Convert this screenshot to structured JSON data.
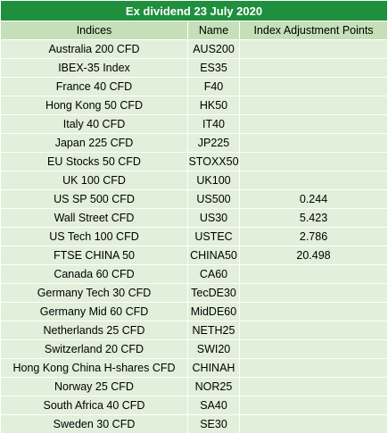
{
  "title": "Ex dividend 23 July 2020",
  "headers": [
    "Indices",
    "Name",
    "Index Adjustment Points"
  ],
  "rows": [
    [
      "Australia 200 CFD",
      "AUS200",
      ""
    ],
    [
      "IBEX-35 Index",
      "ES35",
      ""
    ],
    [
      "France 40 CFD",
      "F40",
      ""
    ],
    [
      "Hong Kong 50 CFD",
      "HK50",
      ""
    ],
    [
      "Italy 40 CFD",
      "IT40",
      ""
    ],
    [
      "Japan 225 CFD",
      "JP225",
      ""
    ],
    [
      "EU Stocks 50 CFD",
      "STOXX50",
      ""
    ],
    [
      "UK 100 CFD",
      "UK100",
      ""
    ],
    [
      "US SP 500 CFD",
      "US500",
      "0.244"
    ],
    [
      "Wall Street CFD",
      "US30",
      "5.423"
    ],
    [
      "US Tech 100 CFD",
      "USTEC",
      "2.786"
    ],
    [
      "FTSE CHINA 50",
      "CHINA50",
      "20.498"
    ],
    [
      "Canada 60 CFD",
      "CA60",
      ""
    ],
    [
      "Germany Tech 30 CFD",
      "TecDE30",
      ""
    ],
    [
      "Germany Mid 60 CFD",
      "MidDE60",
      ""
    ],
    [
      "Netherlands 25 CFD",
      "NETH25",
      ""
    ],
    [
      "Switzerland 20 CFD",
      "SWI20",
      ""
    ],
    [
      "Hong Kong China H-shares CFD",
      "CHINAH",
      ""
    ],
    [
      "Norway 25 CFD",
      "NOR25",
      ""
    ],
    [
      "South Africa 40 CFD",
      "SA40",
      ""
    ],
    [
      "Sweden 30 CFD",
      "SE30",
      ""
    ]
  ]
}
